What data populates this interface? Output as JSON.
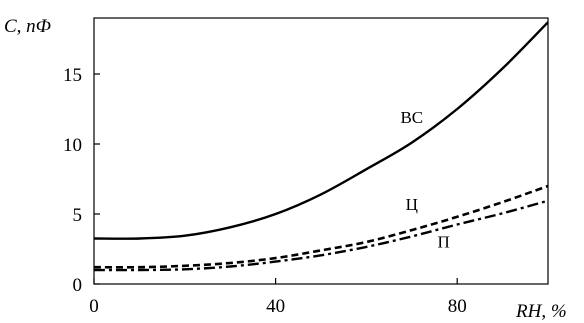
{
  "chart_data": {
    "type": "line",
    "xlabel": "RH, %",
    "ylabel": "C, пФ",
    "xlim": [
      0,
      100
    ],
    "ylim": [
      0,
      19
    ],
    "xticks": [
      0,
      40,
      80
    ],
    "yticks": [
      0,
      5,
      10,
      15
    ],
    "grid": false,
    "legend": "none",
    "series": [
      {
        "name": "ВС",
        "style": "solid",
        "x": [
          0,
          10,
          20,
          30,
          40,
          50,
          60,
          70,
          80,
          90,
          100
        ],
        "y": [
          3.25,
          3.25,
          3.45,
          4.05,
          5.0,
          6.4,
          8.2,
          10.1,
          12.5,
          15.4,
          18.7
        ]
      },
      {
        "name": "Ц",
        "style": "dashed",
        "x": [
          0,
          10,
          20,
          30,
          40,
          50,
          60,
          70,
          80,
          90,
          100
        ],
        "y": [
          1.2,
          1.2,
          1.3,
          1.5,
          1.85,
          2.4,
          3.0,
          3.85,
          4.8,
          5.85,
          7.0
        ]
      },
      {
        "name": "П",
        "style": "dash-dot",
        "x": [
          0,
          10,
          20,
          30,
          40,
          50,
          60,
          70,
          80,
          90,
          100
        ],
        "y": [
          1.0,
          1.0,
          1.05,
          1.25,
          1.6,
          2.05,
          2.65,
          3.4,
          4.25,
          5.05,
          5.95
        ]
      }
    ],
    "annotations": [
      {
        "text": "ВС",
        "x": 70,
        "y": 11.5
      },
      {
        "text": "Ц",
        "x": 70,
        "y": 5.3
      },
      {
        "text": "П",
        "x": 77,
        "y": 2.6
      }
    ]
  }
}
